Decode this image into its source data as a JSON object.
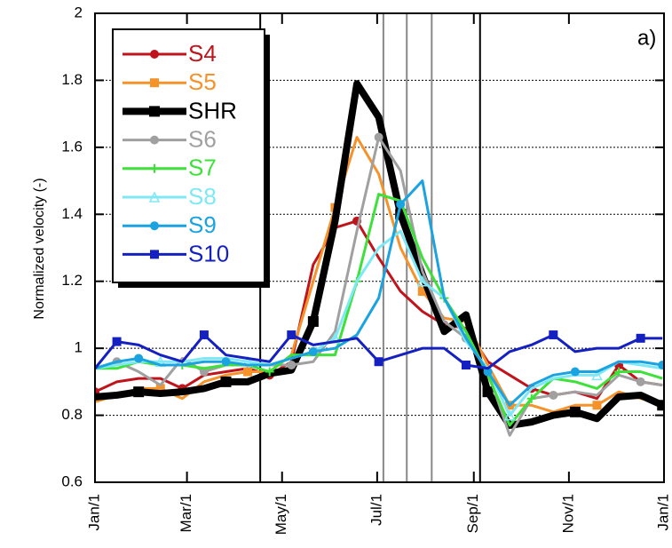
{
  "chart_data": {
    "type": "line",
    "annotation": "a)",
    "y_label": "Normalized velocity (-)",
    "x": [
      0,
      14,
      28,
      42,
      56,
      70,
      84,
      98,
      112,
      126,
      140,
      154,
      168,
      182,
      196,
      210,
      224,
      238,
      252,
      266,
      280,
      294,
      308,
      322,
      336,
      350,
      364
    ],
    "xlim": [
      0,
      365
    ],
    "xticks": [
      {
        "value": 0,
        "label": "Jan/1"
      },
      {
        "value": 59,
        "label": "Mar/1"
      },
      {
        "value": 120,
        "label": "May/1"
      },
      {
        "value": 181,
        "label": "Jul/1"
      },
      {
        "value": 243,
        "label": "Sep/1"
      },
      {
        "value": 304,
        "label": "Nov/1"
      },
      {
        "value": 365,
        "label": "Jan/1"
      }
    ],
    "ylim": [
      0.6,
      2
    ],
    "yticks": [
      0.6,
      0.8,
      1,
      1.2,
      1.4,
      1.6,
      1.8,
      2
    ],
    "grid": true,
    "vlines": [
      {
        "x": 106,
        "color": "#000000"
      },
      {
        "x": 185,
        "color": "#888888"
      },
      {
        "x": 200,
        "color": "#888888"
      },
      {
        "x": 216,
        "color": "#888888"
      },
      {
        "x": 247,
        "color": "#000000"
      }
    ],
    "series": [
      {
        "name": "S4",
        "color": "#c0141c",
        "marker": "circle",
        "width": 3,
        "values": [
          0.87,
          0.9,
          0.91,
          0.91,
          0.88,
          0.92,
          0.93,
          0.94,
          0.92,
          0.96,
          1.25,
          1.36,
          1.38,
          1.27,
          1.17,
          1.11,
          1.07,
          1.06,
          0.96,
          0.92,
          0.88,
          0.86,
          0.87,
          0.85,
          0.95,
          0.9,
          0.89
        ]
      },
      {
        "name": "S5",
        "color": "#f5922a",
        "marker": "square",
        "width": 3,
        "values": [
          0.84,
          0.86,
          0.88,
          0.88,
          0.85,
          0.9,
          0.92,
          0.93,
          0.93,
          0.98,
          1.2,
          1.42,
          1.63,
          1.52,
          1.3,
          1.17,
          1.09,
          1.08,
          0.95,
          0.83,
          0.83,
          0.81,
          0.83,
          0.83,
          0.87,
          0.85,
          0.84
        ]
      },
      {
        "name": "SHR",
        "color": "#000000",
        "marker": "square",
        "width": 8,
        "values": [
          0.855,
          0.86,
          0.87,
          0.865,
          0.87,
          0.88,
          0.9,
          0.9,
          0.925,
          0.935,
          1.08,
          1.38,
          1.79,
          1.69,
          1.4,
          1.22,
          1.05,
          1.1,
          0.87,
          0.77,
          0.78,
          0.8,
          0.81,
          0.79,
          0.855,
          0.86,
          0.83
        ]
      },
      {
        "name": "S6",
        "color": "#a0a0a0",
        "marker": "circle",
        "width": 3,
        "values": [
          0.94,
          0.96,
          0.93,
          0.89,
          0.97,
          0.93,
          0.95,
          0.95,
          0.95,
          0.95,
          0.96,
          1.05,
          1.35,
          1.63,
          1.53,
          1.23,
          1.08,
          1.03,
          0.93,
          0.74,
          0.85,
          0.86,
          0.87,
          0.86,
          0.92,
          0.9,
          0.89
        ]
      },
      {
        "name": "S7",
        "color": "#3ee03a",
        "marker": "plus",
        "width": 3,
        "values": [
          0.94,
          0.94,
          0.96,
          0.95,
          0.95,
          0.94,
          0.95,
          0.95,
          0.93,
          0.98,
          0.98,
          0.98,
          1.2,
          1.46,
          1.44,
          1.27,
          1.15,
          1.05,
          0.92,
          0.77,
          0.85,
          0.91,
          0.9,
          0.88,
          0.93,
          0.93,
          0.91
        ]
      },
      {
        "name": "S8",
        "color": "#7fe8f5",
        "marker": "triangle",
        "width": 3,
        "values": [
          0.94,
          0.95,
          0.96,
          0.96,
          0.96,
          0.97,
          0.97,
          0.96,
          0.95,
          0.97,
          0.99,
          1.03,
          1.2,
          1.3,
          1.35,
          1.2,
          1.15,
          1.02,
          0.94,
          0.8,
          0.88,
          0.91,
          0.92,
          0.92,
          0.96,
          0.95,
          0.94
        ]
      },
      {
        "name": "S9",
        "color": "#1aa3e0",
        "marker": "circle",
        "width": 3,
        "values": [
          0.94,
          0.96,
          0.97,
          0.95,
          0.95,
          0.96,
          0.96,
          0.95,
          0.95,
          0.97,
          0.99,
          1.0,
          1.04,
          1.15,
          1.43,
          1.5,
          1.15,
          1.03,
          0.93,
          0.83,
          0.89,
          0.92,
          0.93,
          0.93,
          0.96,
          0.96,
          0.95
        ]
      },
      {
        "name": "S10",
        "color": "#1420c0",
        "marker": "square",
        "width": 3,
        "values": [
          0.94,
          1.02,
          1.01,
          0.98,
          0.96,
          1.04,
          0.98,
          0.97,
          0.96,
          1.04,
          1.01,
          1.02,
          1.03,
          0.96,
          0.98,
          1.0,
          1.0,
          0.95,
          0.94,
          0.99,
          1.01,
          1.04,
          0.99,
          1.0,
          1.0,
          1.03,
          1.03
        ]
      }
    ]
  }
}
